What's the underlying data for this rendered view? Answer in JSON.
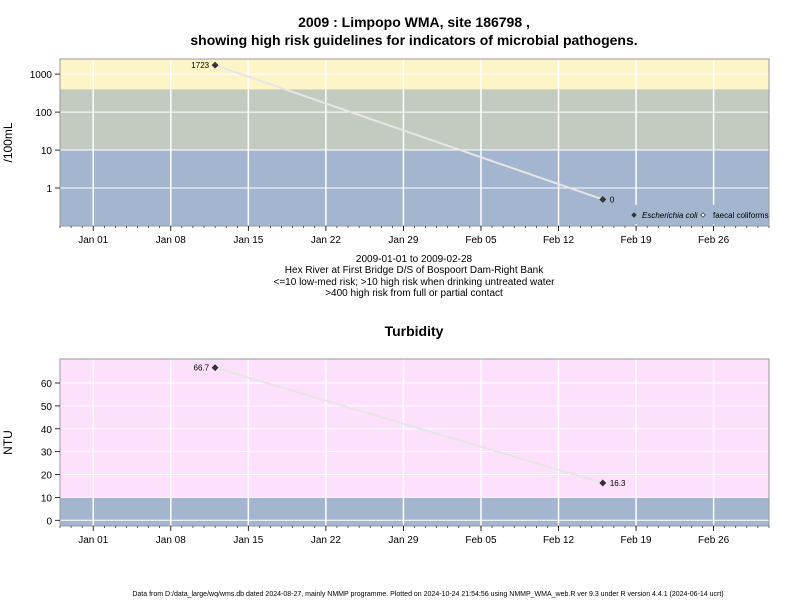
{
  "chart_data": [
    {
      "type": "line",
      "title_line1": "2009 : Limpopo WMA, site 186798 ,",
      "title_line2": "showing high risk guidelines for indicators of microbial pathogens.",
      "ylabel": "/100mL",
      "y_scale": "log",
      "y_ticks": [
        1,
        10,
        100,
        1000
      ],
      "y_tick_labels": [
        "1",
        "10",
        "100",
        "1000"
      ],
      "ylim": [
        0.1,
        2500
      ],
      "x_ticks": [
        "2009-01-01",
        "2009-01-08",
        "2009-01-15",
        "2009-01-22",
        "2009-01-29",
        "2009-02-05",
        "2009-02-12",
        "2009-02-19",
        "2009-02-26"
      ],
      "x_tick_labels": [
        "Jan 01",
        "Jan 08",
        "Jan 15",
        "Jan 22",
        "Jan 29",
        "Feb 05",
        "Feb 12",
        "Feb 19",
        "Feb 26"
      ],
      "xlim": [
        "2008-12-29",
        "2009-03-03"
      ],
      "bands": [
        {
          "from": 0.1,
          "to": 10,
          "color": "#a3b5cf"
        },
        {
          "from": 10,
          "to": 400,
          "color": "#c3cbc1"
        },
        {
          "from": 400,
          "to": 2500,
          "color": "#fdf5c8"
        }
      ],
      "series": [
        {
          "name": "Escherichia coli",
          "marker": "filled-diamond",
          "points": [
            {
              "x": "2009-01-12",
              "y": 1723,
              "label": "1723"
            },
            {
              "x": "2009-02-16",
              "y": 0.5,
              "label": "0"
            }
          ]
        }
      ],
      "legend": {
        "position": "bottom-right",
        "entries": [
          {
            "label": "Escherichia coli",
            "marker": "filled-diamond",
            "italic": true
          },
          {
            "label": "faecal coliforms",
            "marker": "open-diamond",
            "italic": false
          }
        ]
      },
      "caption_lines": [
        "2009-01-01 to 2009-02-28",
        "Hex River at First Bridge D/S of Bospoort Dam-Right Bank",
        "<=10 low-med risk; >10 high risk when drinking untreated water",
        ">400 high risk from full or partial contact"
      ]
    },
    {
      "type": "line",
      "title": "Turbidity",
      "ylabel": "NTU",
      "y_scale": "linear",
      "y_ticks": [
        0,
        10,
        20,
        30,
        40,
        50,
        60
      ],
      "y_tick_labels": [
        "0",
        "10",
        "20",
        "30",
        "40",
        "50",
        "60"
      ],
      "ylim": [
        -2.5,
        70.5
      ],
      "x_ticks": [
        "2009-01-01",
        "2009-01-08",
        "2009-01-15",
        "2009-01-22",
        "2009-01-29",
        "2009-02-05",
        "2009-02-12",
        "2009-02-19",
        "2009-02-26"
      ],
      "x_tick_labels": [
        "Jan 01",
        "Jan 08",
        "Jan 15",
        "Jan 22",
        "Jan 29",
        "Feb 05",
        "Feb 12",
        "Feb 19",
        "Feb 26"
      ],
      "xlim": [
        "2008-12-29",
        "2009-03-03"
      ],
      "bands": [
        {
          "from": -2.5,
          "to": 10,
          "color": "#a3b5cf"
        },
        {
          "from": 10,
          "to": 70.5,
          "color": "#fde0fb"
        }
      ],
      "series": [
        {
          "marker": "filled-diamond",
          "points": [
            {
              "x": "2009-01-12",
              "y": 66.7,
              "label": "66.7"
            },
            {
              "x": "2009-02-16",
              "y": 16.3,
              "label": "16.3"
            }
          ]
        }
      ]
    }
  ],
  "footer": "Data from D:/data_large/wq/wms.db dated 2024-08-27, mainly NMMP programme. Plotted on 2024-10-24 21:54:56 using NMMP_WMA_web.R ver 9.3 under R version 4.4.1 (2024-06-14 ucrt)",
  "colors": {
    "grid": "#ffffff",
    "frame": "#999999",
    "line": "#e6e6e6",
    "marker": "#333333"
  }
}
